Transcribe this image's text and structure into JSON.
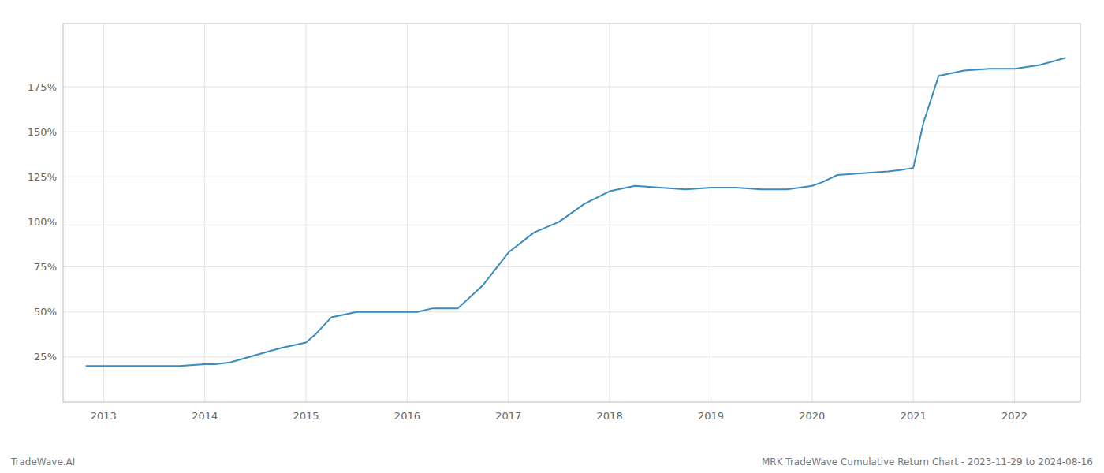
{
  "chart_data": {
    "type": "line",
    "title": "MRK TradeWave Cumulative Return Chart - 2023-11-29 to 2024-08-16",
    "annotations": [
      "TradeWave.AI"
    ],
    "color": "#3a8bbf",
    "grid": true,
    "x": [
      2012.83,
      2013.0,
      2013.25,
      2013.5,
      2013.75,
      2014.0,
      2014.1,
      2014.25,
      2014.5,
      2014.75,
      2015.0,
      2015.1,
      2015.25,
      2015.5,
      2015.75,
      2016.0,
      2016.1,
      2016.25,
      2016.5,
      2016.75,
      2017.0,
      2017.25,
      2017.5,
      2017.75,
      2018.0,
      2018.25,
      2018.5,
      2018.75,
      2019.0,
      2019.25,
      2019.5,
      2019.75,
      2020.0,
      2020.1,
      2020.25,
      2020.5,
      2020.75,
      2020.9,
      2021.0,
      2021.1,
      2021.25,
      2021.5,
      2021.75,
      2022.0,
      2022.25,
      2022.5
    ],
    "values": [
      20,
      20,
      20,
      20,
      20,
      21,
      21,
      22,
      26,
      30,
      33,
      38,
      47,
      50,
      50,
      50,
      50,
      52,
      52,
      65,
      83,
      94,
      100,
      110,
      117,
      120,
      119,
      118,
      119,
      119,
      118,
      118,
      120,
      122,
      126,
      127,
      128,
      129,
      130,
      155,
      181,
      184,
      185,
      185,
      187,
      191
    ],
    "xlim": [
      2012.6,
      2022.65
    ],
    "ylim": [
      0,
      210
    ],
    "xticks": [
      2013,
      2014,
      2015,
      2016,
      2017,
      2018,
      2019,
      2020,
      2021,
      2022
    ],
    "yticks": [
      {
        "value": 25,
        "label": "25%"
      },
      {
        "value": 50,
        "label": "50%"
      },
      {
        "value": 75,
        "label": "75%"
      },
      {
        "value": 100,
        "label": "100%"
      },
      {
        "value": 125,
        "label": "125%"
      },
      {
        "value": 150,
        "label": "150%"
      },
      {
        "value": 175,
        "label": "175%"
      }
    ]
  }
}
